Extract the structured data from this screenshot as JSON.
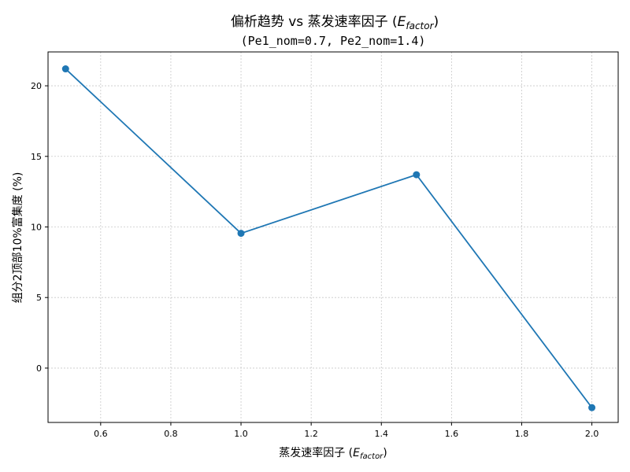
{
  "chart_data": {
    "type": "line",
    "title": "偏析趋势 vs 蒸发速率因子 (",
    "title_symbol": "E",
    "title_symbol_sub": "factor",
    "title_close": ")",
    "subtitle": "(Pe1_nom=0.7, Pe2_nom=1.4)",
    "xlabel": "蒸发速率因子 (",
    "xlabel_symbol": "E",
    "xlabel_symbol_sub": "factor",
    "xlabel_close": ")",
    "ylabel": "组分2顶部10%富集度 (%)",
    "xlim": [
      0.45,
      2.075
    ],
    "ylim": [
      -3.85,
      22.4
    ],
    "xticks": [
      0.6,
      0.8,
      1.0,
      1.2,
      1.4,
      1.6,
      1.8,
      2.0
    ],
    "xtick_labels": [
      "0.6",
      "0.8",
      "1.0",
      "1.2",
      "1.4",
      "1.6",
      "1.8",
      "2.0"
    ],
    "yticks": [
      0,
      5,
      10,
      15,
      20
    ],
    "ytick_labels": [
      "0",
      "5",
      "10",
      "15",
      "20"
    ],
    "grid": true,
    "series": [
      {
        "color": "#1f77b4",
        "marker": "circle",
        "x": [
          0.5,
          1.0,
          1.5,
          2.0
        ],
        "y": [
          21.2,
          9.55,
          13.7,
          -2.8
        ]
      }
    ]
  }
}
